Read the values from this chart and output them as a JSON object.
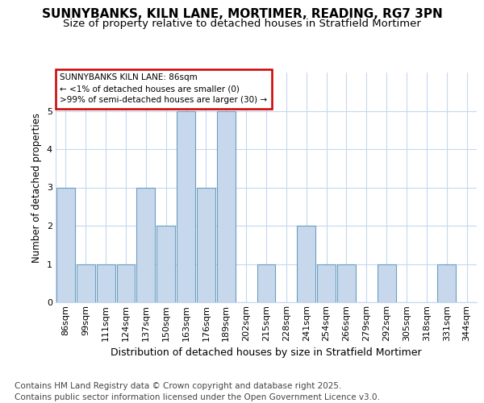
{
  "title": "SUNNYBANKS, KILN LANE, MORTIMER, READING, RG7 3PN",
  "subtitle": "Size of property relative to detached houses in Stratfield Mortimer",
  "xlabel": "Distribution of detached houses by size in Stratfield Mortimer",
  "ylabel": "Number of detached properties",
  "categories": [
    "86sqm",
    "99sqm",
    "111sqm",
    "124sqm",
    "137sqm",
    "150sqm",
    "163sqm",
    "176sqm",
    "189sqm",
    "202sqm",
    "215sqm",
    "228sqm",
    "241sqm",
    "254sqm",
    "266sqm",
    "279sqm",
    "292sqm",
    "305sqm",
    "318sqm",
    "331sqm",
    "344sqm"
  ],
  "values": [
    3,
    1,
    1,
    1,
    3,
    2,
    5,
    3,
    5,
    0,
    1,
    0,
    2,
    1,
    1,
    0,
    1,
    0,
    0,
    1,
    0
  ],
  "bar_color": "#c8d8ec",
  "bar_edge_color": "#6a9fc0",
  "annotation_box_text": "SUNNYBANKS KILN LANE: 86sqm\n← <1% of detached houses are smaller (0)\n>99% of semi-detached houses are larger (30) →",
  "annotation_box_color": "#ffffff",
  "annotation_box_edge_color": "#cc0000",
  "ylim": [
    0,
    6
  ],
  "yticks": [
    0,
    1,
    2,
    3,
    4,
    5,
    6
  ],
  "footer": "Contains HM Land Registry data © Crown copyright and database right 2025.\nContains public sector information licensed under the Open Government Licence v3.0.",
  "title_fontsize": 11,
  "subtitle_fontsize": 9.5,
  "xlabel_fontsize": 9,
  "ylabel_fontsize": 8.5,
  "tick_fontsize": 8,
  "footer_fontsize": 7.5,
  "background_color": "#ffffff",
  "plot_bg_color": "#ffffff",
  "grid_color": "#c5d8f0"
}
